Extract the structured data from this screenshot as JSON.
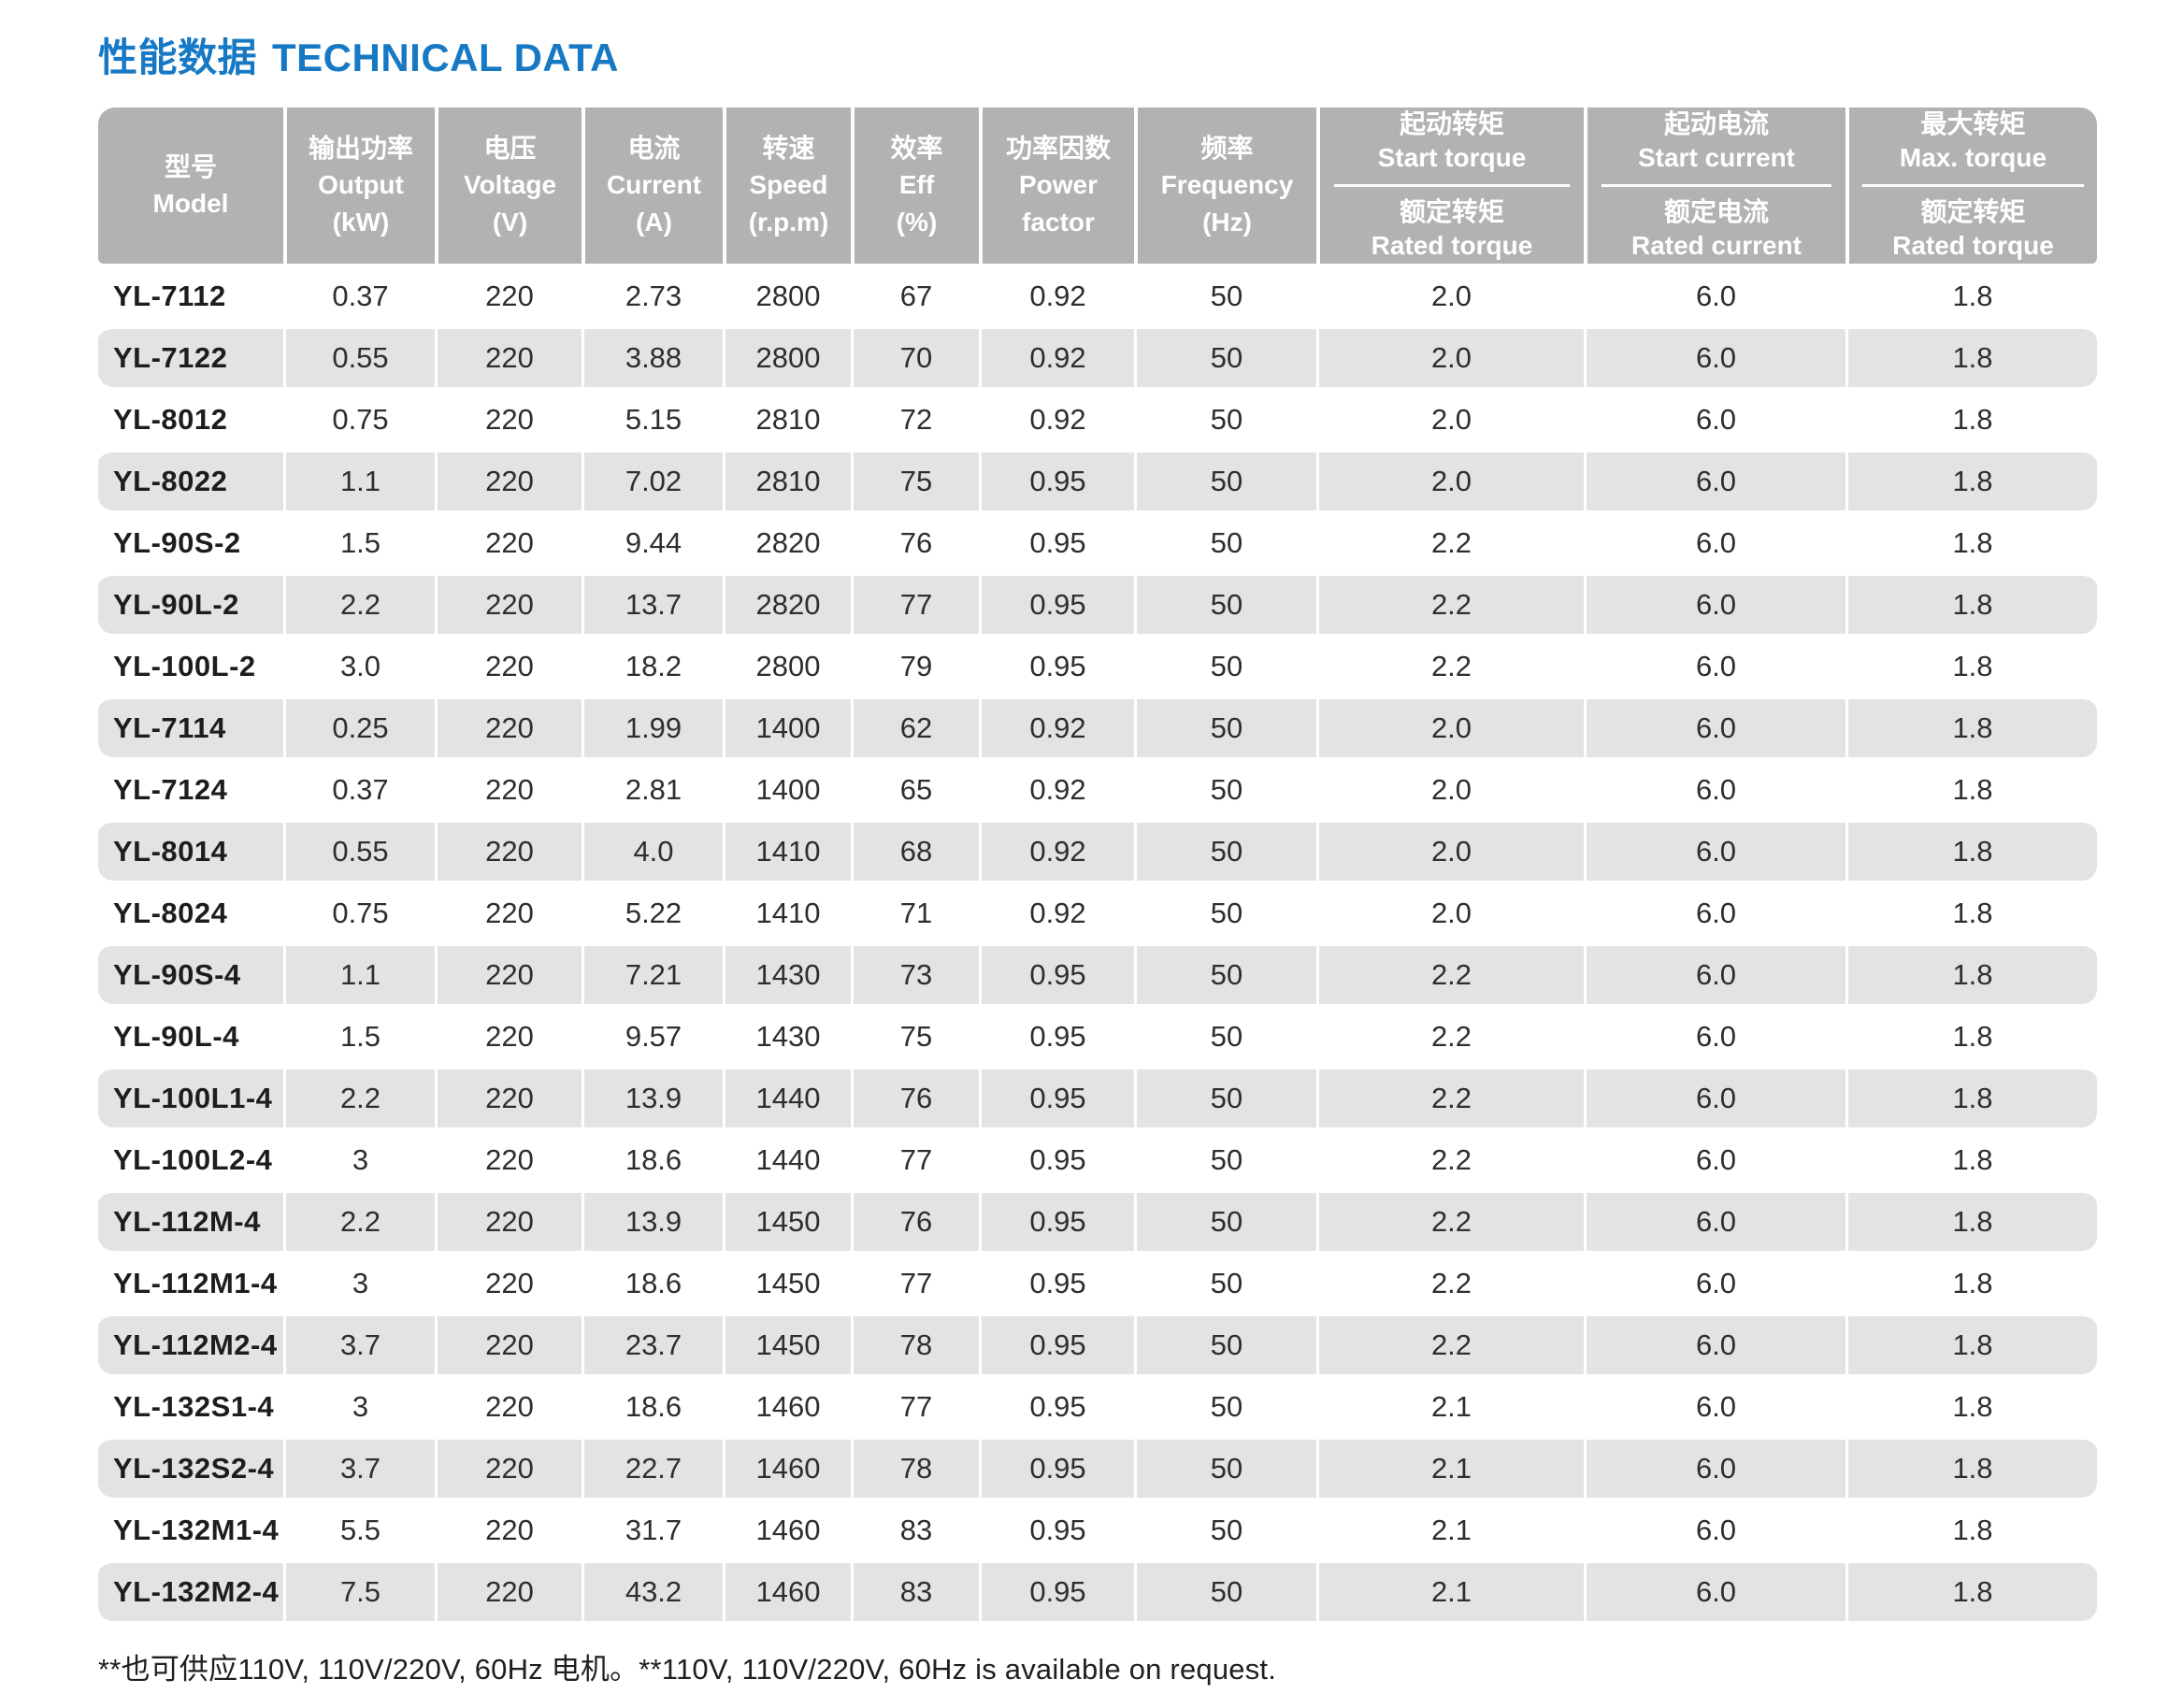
{
  "page": {
    "title_zh": "性能数据",
    "title_en": "TECHNICAL DATA",
    "footnote": "**也可供应110V, 110V/220V, 60Hz 电机。**110V, 110V/220V, 60Hz is available on request."
  },
  "colors": {
    "title_blue": "#1779c4",
    "header_bg": "#b2b2b2",
    "stripe_bg": "#e3e3e3",
    "header_text": "#ffffff",
    "body_text": "#2e2e2e"
  },
  "table": {
    "columns": [
      {
        "zh": "型号",
        "en": "Model",
        "unit": ""
      },
      {
        "zh": "输出功率",
        "en": "Output",
        "unit": "(kW)"
      },
      {
        "zh": "电压",
        "en": "Voltage",
        "unit": "(V)"
      },
      {
        "zh": "电流",
        "en": "Current",
        "unit": "(A)"
      },
      {
        "zh": "转速",
        "en": "Speed",
        "unit": "(r.p.m)"
      },
      {
        "zh": "效率",
        "en": "Eff",
        "unit": "(%)"
      },
      {
        "zh": "功率因数",
        "en": "Power factor",
        "unit": ""
      },
      {
        "zh": "频率",
        "en": "Frequency",
        "unit": "(Hz)"
      }
    ],
    "split_columns": [
      {
        "top_zh": "起动转矩",
        "top_en": "Start torque",
        "bottom_zh": "额定转矩",
        "bottom_en": "Rated torque"
      },
      {
        "top_zh": "起动电流",
        "top_en": "Start current",
        "bottom_zh": "额定电流",
        "bottom_en": "Rated current"
      },
      {
        "top_zh": "最大转矩",
        "top_en": "Max. torque",
        "bottom_zh": "额定转矩",
        "bottom_en": "Rated torque"
      }
    ],
    "rows": [
      [
        "YL-7112",
        "0.37",
        "220",
        "2.73",
        "2800",
        "67",
        "0.92",
        "50",
        "2.0",
        "6.0",
        "1.8"
      ],
      [
        "YL-7122",
        "0.55",
        "220",
        "3.88",
        "2800",
        "70",
        "0.92",
        "50",
        "2.0",
        "6.0",
        "1.8"
      ],
      [
        "YL-8012",
        "0.75",
        "220",
        "5.15",
        "2810",
        "72",
        "0.92",
        "50",
        "2.0",
        "6.0",
        "1.8"
      ],
      [
        "YL-8022",
        "1.1",
        "220",
        "7.02",
        "2810",
        "75",
        "0.95",
        "50",
        "2.0",
        "6.0",
        "1.8"
      ],
      [
        "YL-90S-2",
        "1.5",
        "220",
        "9.44",
        "2820",
        "76",
        "0.95",
        "50",
        "2.2",
        "6.0",
        "1.8"
      ],
      [
        "YL-90L-2",
        "2.2",
        "220",
        "13.7",
        "2820",
        "77",
        "0.95",
        "50",
        "2.2",
        "6.0",
        "1.8"
      ],
      [
        "YL-100L-2",
        "3.0",
        "220",
        "18.2",
        "2800",
        "79",
        "0.95",
        "50",
        "2.2",
        "6.0",
        "1.8"
      ],
      [
        "YL-7114",
        "0.25",
        "220",
        "1.99",
        "1400",
        "62",
        "0.92",
        "50",
        "2.0",
        "6.0",
        "1.8"
      ],
      [
        "YL-7124",
        "0.37",
        "220",
        "2.81",
        "1400",
        "65",
        "0.92",
        "50",
        "2.0",
        "6.0",
        "1.8"
      ],
      [
        "YL-8014",
        "0.55",
        "220",
        "4.0",
        "1410",
        "68",
        "0.92",
        "50",
        "2.0",
        "6.0",
        "1.8"
      ],
      [
        "YL-8024",
        "0.75",
        "220",
        "5.22",
        "1410",
        "71",
        "0.92",
        "50",
        "2.0",
        "6.0",
        "1.8"
      ],
      [
        "YL-90S-4",
        "1.1",
        "220",
        "7.21",
        "1430",
        "73",
        "0.95",
        "50",
        "2.2",
        "6.0",
        "1.8"
      ],
      [
        "YL-90L-4",
        "1.5",
        "220",
        "9.57",
        "1430",
        "75",
        "0.95",
        "50",
        "2.2",
        "6.0",
        "1.8"
      ],
      [
        "YL-100L1-4",
        "2.2",
        "220",
        "13.9",
        "1440",
        "76",
        "0.95",
        "50",
        "2.2",
        "6.0",
        "1.8"
      ],
      [
        "YL-100L2-4",
        "3",
        "220",
        "18.6",
        "1440",
        "77",
        "0.95",
        "50",
        "2.2",
        "6.0",
        "1.8"
      ],
      [
        "YL-112M-4",
        "2.2",
        "220",
        "13.9",
        "1450",
        "76",
        "0.95",
        "50",
        "2.2",
        "6.0",
        "1.8"
      ],
      [
        "YL-112M1-4",
        "3",
        "220",
        "18.6",
        "1450",
        "77",
        "0.95",
        "50",
        "2.2",
        "6.0",
        "1.8"
      ],
      [
        "YL-112M2-4",
        "3.7",
        "220",
        "23.7",
        "1450",
        "78",
        "0.95",
        "50",
        "2.2",
        "6.0",
        "1.8"
      ],
      [
        "YL-132S1-4",
        "3",
        "220",
        "18.6",
        "1460",
        "77",
        "0.95",
        "50",
        "2.1",
        "6.0",
        "1.8"
      ],
      [
        "YL-132S2-4",
        "3.7",
        "220",
        "22.7",
        "1460",
        "78",
        "0.95",
        "50",
        "2.1",
        "6.0",
        "1.8"
      ],
      [
        "YL-132M1-4",
        "5.5",
        "220",
        "31.7",
        "1460",
        "83",
        "0.95",
        "50",
        "2.1",
        "6.0",
        "1.8"
      ],
      [
        "YL-132M2-4",
        "7.5",
        "220",
        "43.2",
        "1460",
        "83",
        "0.95",
        "50",
        "2.1",
        "6.0",
        "1.8"
      ]
    ]
  }
}
